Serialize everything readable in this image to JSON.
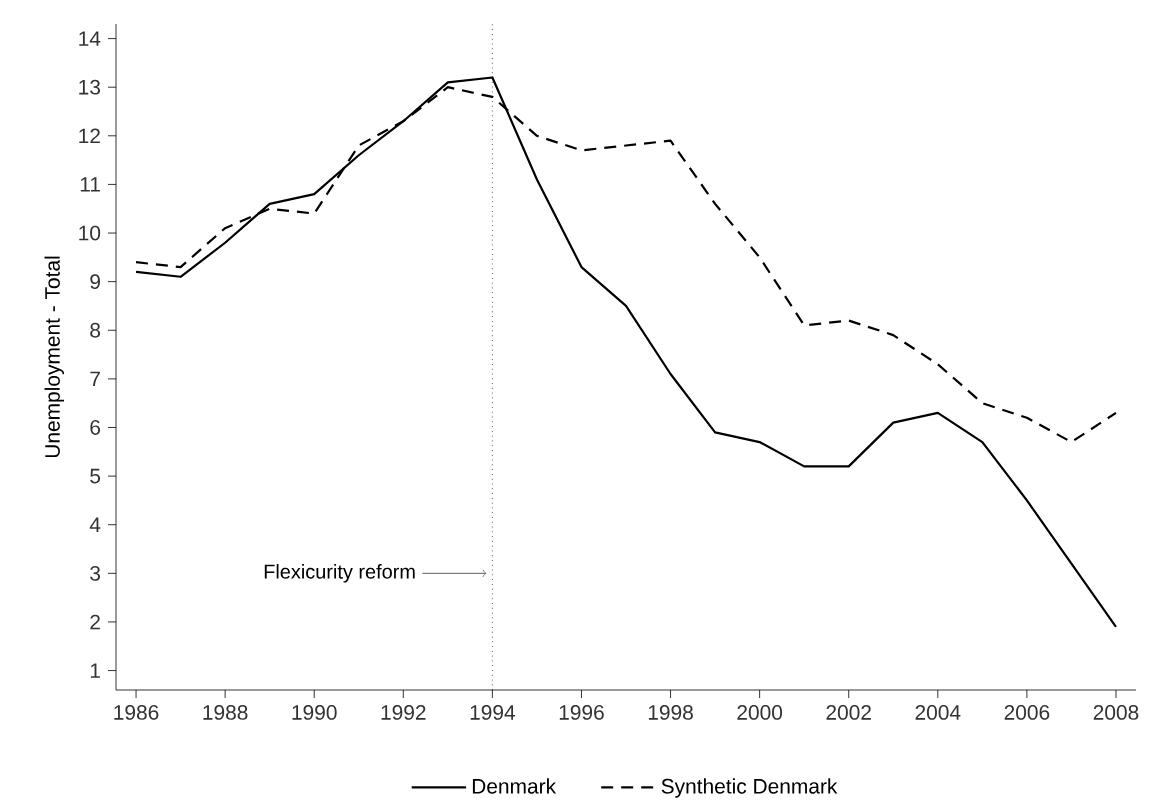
{
  "chart_data": {
    "type": "line",
    "ylabel": "Unemployment - Total",
    "x": [
      1986,
      1987,
      1988,
      1989,
      1990,
      1991,
      1992,
      1993,
      1994,
      1995,
      1996,
      1997,
      1998,
      1999,
      2000,
      2001,
      2002,
      2003,
      2004,
      2005,
      2006,
      2007,
      2008
    ],
    "series": [
      {
        "name": "Denmark",
        "color": "#000000",
        "line_style": "solid",
        "values": [
          9.2,
          9.1,
          9.8,
          10.6,
          10.8,
          11.6,
          12.3,
          13.1,
          13.2,
          11.1,
          9.3,
          8.5,
          7.1,
          5.9,
          5.7,
          5.2,
          5.2,
          6.1,
          6.3,
          5.7,
          4.5,
          3.2,
          1.9
        ]
      },
      {
        "name": "Synthetic Denmark",
        "color": "#000000",
        "line_style": "dashed",
        "values": [
          9.4,
          9.3,
          10.1,
          10.5,
          10.4,
          11.8,
          12.3,
          13.0,
          12.8,
          12.0,
          11.7,
          11.8,
          11.9,
          10.6,
          9.5,
          8.1,
          8.2,
          7.9,
          7.3,
          6.5,
          6.2,
          5.7,
          6.3
        ]
      }
    ],
    "xlim": [
      1985.55,
      2008.45
    ],
    "ylim": [
      0.6,
      14.3
    ],
    "xticks": [
      1986,
      1988,
      1990,
      1992,
      1994,
      1996,
      1998,
      2000,
      2002,
      2004,
      2006,
      2008
    ],
    "yticks": [
      1,
      2,
      3,
      4,
      5,
      6,
      7,
      8,
      9,
      10,
      11,
      12,
      13,
      14
    ],
    "ref_lines": [
      {
        "axis": "x",
        "value": 1994,
        "line_style": "dotted",
        "color": "#000000"
      }
    ],
    "annotations": [
      {
        "text": "Flexicurity reform",
        "x": 1994,
        "y": 3
      }
    ],
    "legend": "bottom",
    "grid": false,
    "marker": "none"
  }
}
